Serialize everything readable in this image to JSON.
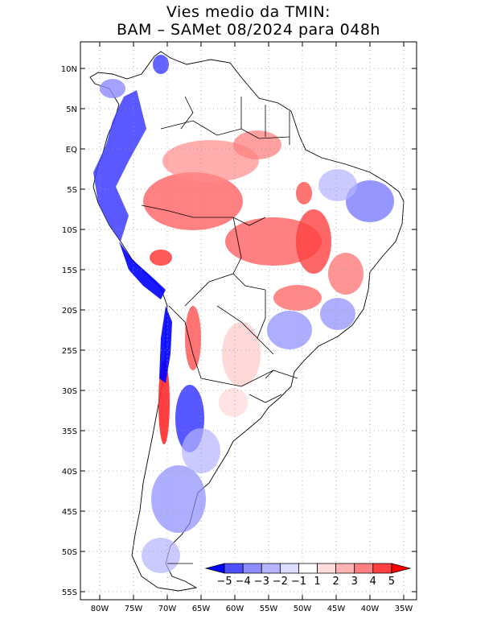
{
  "title": {
    "line1": "Vies medio da TMIN:",
    "line2": "BAM – SAMet 08/2024  para 048h"
  },
  "axes": {
    "lat_labels": [
      "10N",
      "5N",
      "EQ",
      "5S",
      "10S",
      "15S",
      "20S",
      "25S",
      "30S",
      "35S",
      "40S",
      "45S",
      "50S",
      "55S"
    ],
    "lat_values": [
      10,
      5,
      0,
      -5,
      -10,
      -15,
      -20,
      -25,
      -30,
      -35,
      -40,
      -45,
      -50,
      -55
    ],
    "lon_labels": [
      "80W",
      "75W",
      "70W",
      "65W",
      "60W",
      "55W",
      "50W",
      "45W",
      "40W",
      "35W"
    ],
    "lon_values": [
      -80,
      -75,
      -70,
      -65,
      -60,
      -55,
      -50,
      -45,
      -40,
      -35
    ]
  },
  "colorbar": {
    "labels": [
      "−5",
      "−4",
      "−3",
      "−2",
      "−1",
      "1",
      "2",
      "3",
      "4",
      "5"
    ],
    "colors": [
      "#0000ff",
      "#4f4fff",
      "#8c8cff",
      "#b4b4ff",
      "#dcdcff",
      "#ffffff",
      "#ffdcdc",
      "#ffb4b4",
      "#ff8080",
      "#ff4040",
      "#ff0000"
    ]
  },
  "colors": {
    "land_neutral": "#ffffff",
    "border": "#000000",
    "grid": "#999999"
  }
}
